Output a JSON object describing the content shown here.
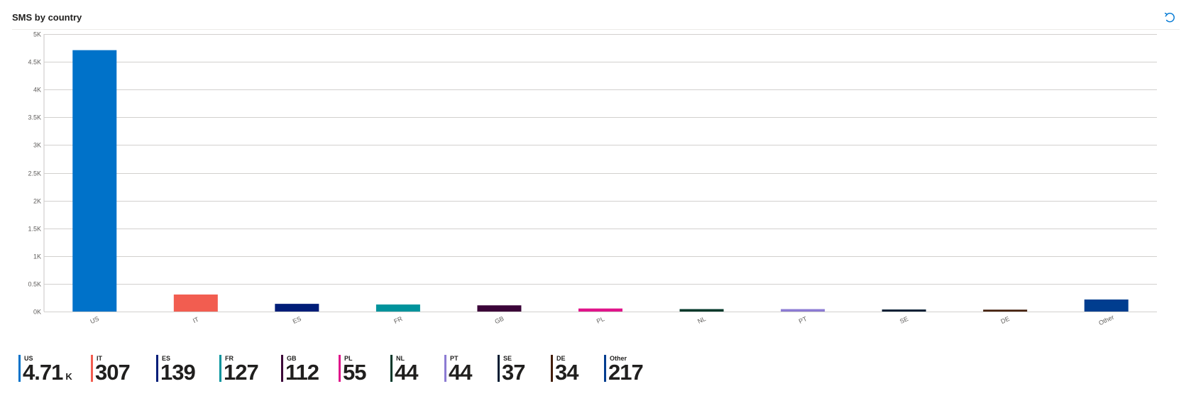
{
  "header": {
    "title": "SMS by country"
  },
  "icons": {
    "refresh": "refresh-icon"
  },
  "colors": {
    "US": "#0072c9",
    "IT": "#f25d50",
    "ES": "#001d78",
    "FR": "#00939c",
    "GB": "#3b0438",
    "PL": "#e0148a",
    "NL": "#01382a",
    "PT": "#8c7bd3",
    "SE": "#041c32",
    "DE": "#431e0b",
    "Other": "#003d8f"
  },
  "chart_data": {
    "type": "bar",
    "title": "SMS by country",
    "xlabel": "",
    "ylabel": "",
    "ylim": [
      0,
      5000
    ],
    "grid": true,
    "legend_placement": "bottom",
    "categories": [
      "US",
      "IT",
      "ES",
      "FR",
      "GB",
      "PL",
      "NL",
      "PT",
      "SE",
      "DE",
      "Other"
    ],
    "values": [
      4710,
      307,
      139,
      127,
      112,
      55,
      44,
      44,
      37,
      34,
      217
    ],
    "y_ticks": [
      {
        "value": 0,
        "label": "0K"
      },
      {
        "value": 500,
        "label": "0.5K"
      },
      {
        "value": 1000,
        "label": "1K"
      },
      {
        "value": 1500,
        "label": "1.5K"
      },
      {
        "value": 2000,
        "label": "2K"
      },
      {
        "value": 2500,
        "label": "2.5K"
      },
      {
        "value": 3000,
        "label": "3K"
      },
      {
        "value": 3500,
        "label": "3.5K"
      },
      {
        "value": 4000,
        "label": "4K"
      },
      {
        "value": 4500,
        "label": "4.5K"
      },
      {
        "value": 5000,
        "label": "5K"
      }
    ]
  },
  "legend": [
    {
      "name": "US",
      "value": "4.71",
      "unit": "K"
    },
    {
      "name": "IT",
      "value": "307",
      "unit": ""
    },
    {
      "name": "ES",
      "value": "139",
      "unit": ""
    },
    {
      "name": "FR",
      "value": "127",
      "unit": ""
    },
    {
      "name": "GB",
      "value": "112",
      "unit": ""
    },
    {
      "name": "PL",
      "value": "55",
      "unit": ""
    },
    {
      "name": "NL",
      "value": "44",
      "unit": ""
    },
    {
      "name": "PT",
      "value": "44",
      "unit": ""
    },
    {
      "name": "SE",
      "value": "37",
      "unit": ""
    },
    {
      "name": "DE",
      "value": "34",
      "unit": ""
    },
    {
      "name": "Other",
      "value": "217",
      "unit": ""
    }
  ]
}
